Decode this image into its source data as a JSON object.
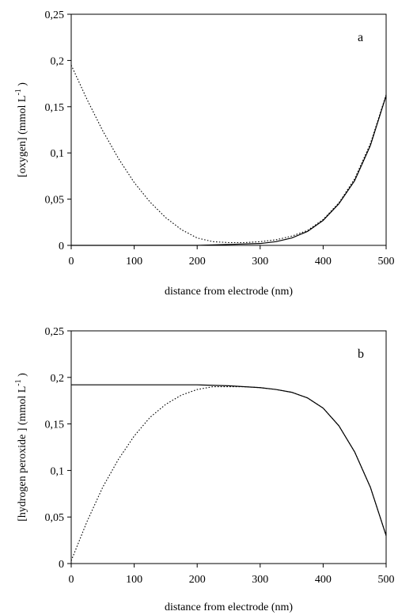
{
  "chart_data": [
    {
      "type": "line",
      "panel_label": "a",
      "xlabel": "distance from electrode (nm)",
      "ylabel": "[oxygen] (mmol L",
      "ylabel_sup": "-1",
      "ylabel_close": ")",
      "xlim": [
        0,
        500
      ],
      "ylim": [
        0,
        0.25
      ],
      "x_ticks": [
        0,
        100,
        200,
        300,
        400,
        500
      ],
      "x_tick_labels": [
        "0",
        "100",
        "200",
        "300",
        "400",
        "500"
      ],
      "y_ticks": [
        0,
        0.05,
        0.1,
        0.15,
        0.2,
        0.25
      ],
      "y_tick_labels": [
        "0",
        "0,05",
        "0,1",
        "0,15",
        "0,2",
        "0,25"
      ],
      "grid": false,
      "series": [
        {
          "style": "solid",
          "x": [
            0,
            100,
            200,
            250,
            300,
            325,
            350,
            375,
            400,
            425,
            450,
            475,
            500
          ],
          "y": [
            0.0,
            0.0,
            0.0,
            0.001,
            0.002,
            0.004,
            0.008,
            0.015,
            0.027,
            0.045,
            0.07,
            0.108,
            0.162
          ]
        },
        {
          "style": "dotted",
          "x": [
            0,
            25,
            50,
            75,
            100,
            125,
            150,
            175,
            200,
            225,
            250,
            275,
            300,
            325,
            350,
            375,
            400,
            425,
            450,
            475,
            500
          ],
          "y": [
            0.195,
            0.158,
            0.124,
            0.094,
            0.068,
            0.047,
            0.03,
            0.017,
            0.008,
            0.004,
            0.003,
            0.003,
            0.004,
            0.006,
            0.01,
            0.016,
            0.028,
            0.046,
            0.072,
            0.11,
            0.163
          ]
        }
      ]
    },
    {
      "type": "line",
      "panel_label": "b",
      "xlabel": "distance from electrode (nm)",
      "ylabel": "[hydrogen peroxide ] (mmol L",
      "ylabel_sup": "-1",
      "ylabel_close": ")",
      "xlim": [
        0,
        500
      ],
      "ylim": [
        0,
        0.25
      ],
      "x_ticks": [
        0,
        100,
        200,
        300,
        400,
        500
      ],
      "x_tick_labels": [
        "0",
        "100",
        "200",
        "300",
        "400",
        "500"
      ],
      "y_ticks": [
        0,
        0.05,
        0.1,
        0.15,
        0.2,
        0.25
      ],
      "y_tick_labels": [
        "0",
        "0,05",
        "0,1",
        "0,15",
        "0,2",
        "0,25"
      ],
      "grid": false,
      "series": [
        {
          "style": "solid",
          "x": [
            0,
            100,
            200,
            250,
            300,
            325,
            350,
            375,
            400,
            425,
            450,
            475,
            500
          ],
          "y": [
            0.192,
            0.192,
            0.192,
            0.191,
            0.189,
            0.187,
            0.184,
            0.178,
            0.167,
            0.148,
            0.12,
            0.082,
            0.03
          ]
        },
        {
          "style": "dotted",
          "x": [
            0,
            25,
            50,
            75,
            100,
            125,
            150,
            175,
            200,
            225,
            250,
            275,
            300,
            325,
            350,
            375,
            400,
            425,
            450,
            475,
            500
          ],
          "y": [
            0.003,
            0.045,
            0.082,
            0.112,
            0.137,
            0.157,
            0.171,
            0.181,
            0.187,
            0.19,
            0.19,
            0.19,
            0.189,
            0.187,
            0.184,
            0.178,
            0.167,
            0.148,
            0.12,
            0.082,
            0.03
          ]
        }
      ]
    }
  ]
}
